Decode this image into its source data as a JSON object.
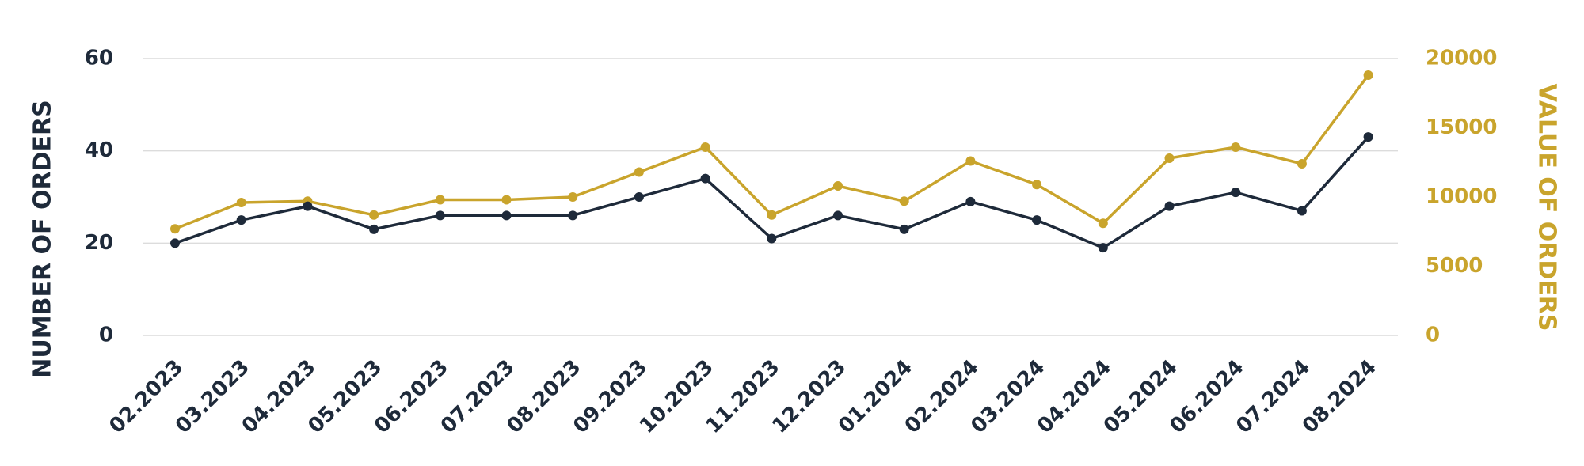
{
  "colors": {
    "orders_count": "#1e2a3a",
    "orders_value": "#c9a42c",
    "grid": "#dcdcdc"
  },
  "chart_data": {
    "type": "line",
    "categories": [
      "02.2023",
      "03.2023",
      "04.2023",
      "05.2023",
      "06.2023",
      "07.2023",
      "08.2023",
      "09.2023",
      "10.2023",
      "11.2023",
      "12.2023",
      "01.2024",
      "02.2024",
      "03.2024",
      "04.2024",
      "05.2024",
      "06.2024",
      "07.2024",
      "08.2024"
    ],
    "ylabel": "NUMBER OF ORDERS",
    "y2label": "VALUE OF ORDERS",
    "ylim": [
      0,
      60
    ],
    "y2lim": [
      0,
      20000
    ],
    "yticks": [
      "0",
      "20",
      "40",
      "60"
    ],
    "y2ticks": [
      "0",
      "5000",
      "10000",
      "15000",
      "20000"
    ],
    "grid": true,
    "series": [
      {
        "axis": "left",
        "color": "#1e2a3a",
        "values": [
          20,
          25,
          28,
          23,
          26,
          26,
          26,
          30,
          34,
          21,
          26,
          23,
          29,
          25,
          19,
          28,
          31,
          27,
          43
        ]
      },
      {
        "axis": "right",
        "color": "#c9a42c",
        "values": [
          7700,
          9600,
          9700,
          8700,
          9800,
          9800,
          10000,
          11800,
          13600,
          8700,
          10800,
          9700,
          12600,
          10900,
          8100,
          12800,
          13600,
          12400,
          18800
        ]
      }
    ]
  }
}
